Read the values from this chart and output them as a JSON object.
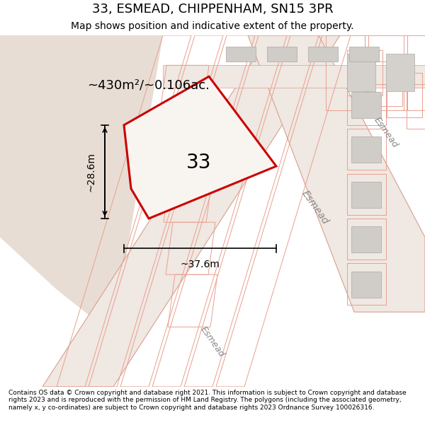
{
  "title": "33, ESMEAD, CHIPPENHAM, SN15 3PR",
  "subtitle": "Map shows position and indicative extent of the property.",
  "footer": "Contains OS data © Crown copyright and database right 2021. This information is subject to Crown copyright and database rights 2023 and is reproduced with the permission of HM Land Registry. The polygons (including the associated geometry, namely x, y co-ordinates) are subject to Crown copyright and database rights 2023 Ordnance Survey 100026316.",
  "area_label": "~430m²/~0.106ac.",
  "width_label": "~37.6m",
  "height_label": "~28.6m",
  "plot_number": "33",
  "bg_color": "#f5f0eb",
  "map_bg": "#f9f6f2",
  "road_color": "#f0ebe5",
  "plot_fill": "#ffffff",
  "plot_outline_color": "#cc0000",
  "building_fill": "#d8d5d0",
  "road_line_color": "#e8a090",
  "street_name": "Esmead",
  "figsize": [
    6.0,
    6.25
  ],
  "dpi": 100
}
